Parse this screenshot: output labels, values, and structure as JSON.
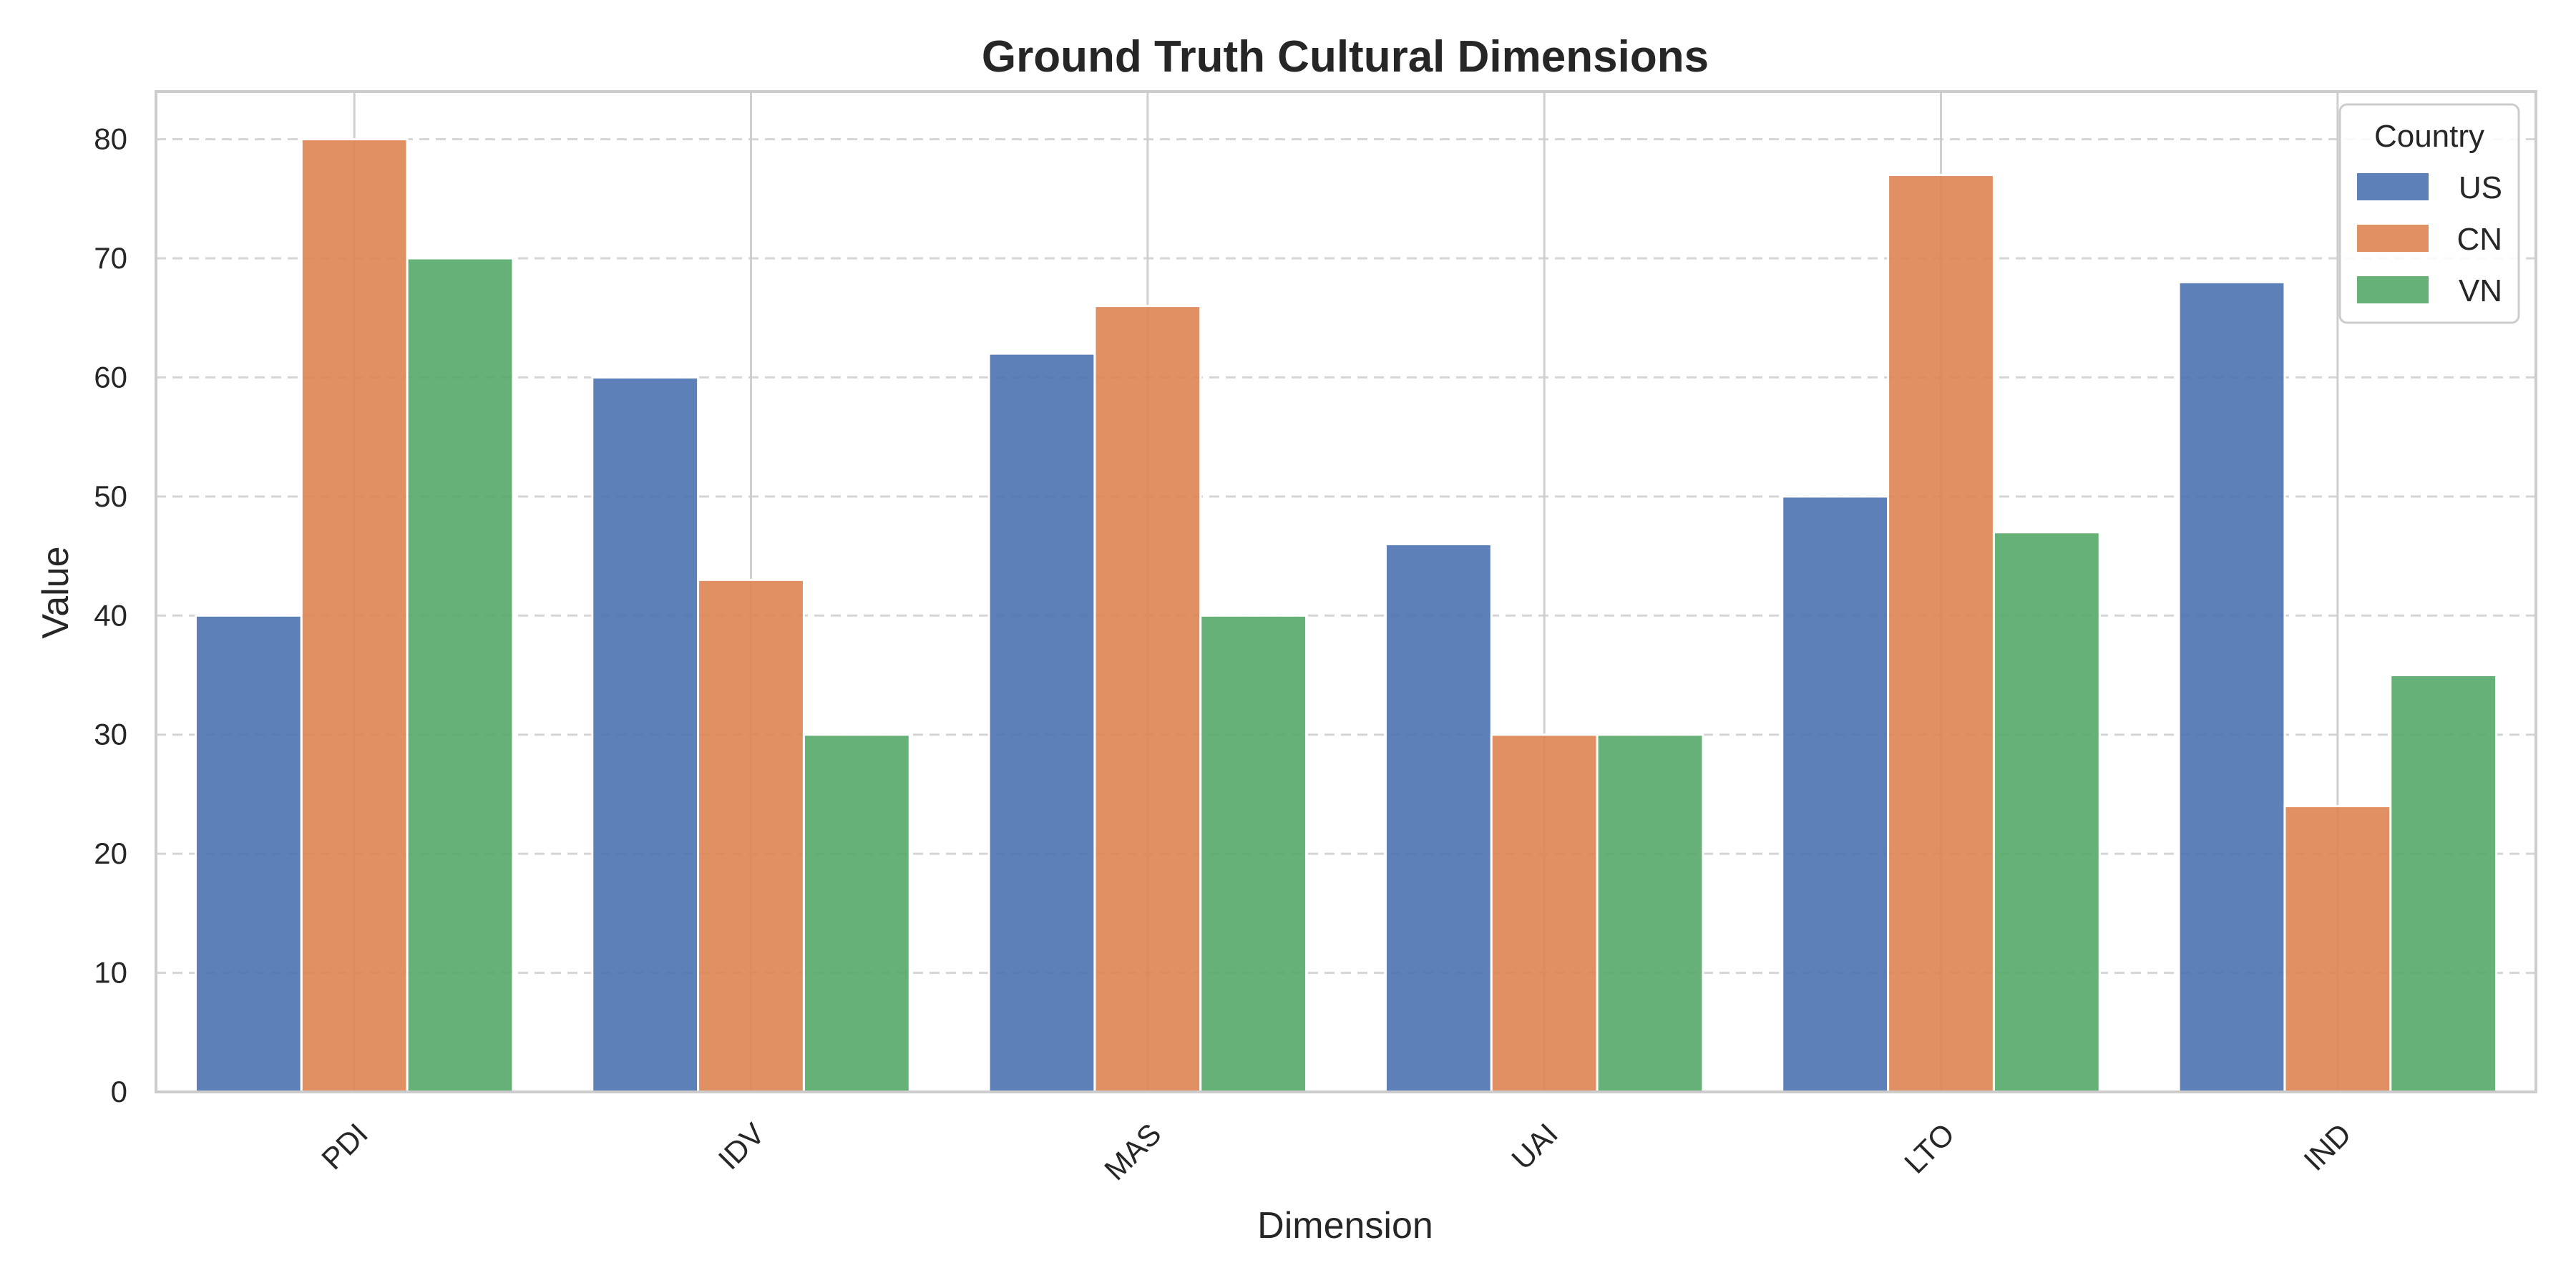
{
  "chart_data": {
    "type": "bar",
    "title": "Ground Truth Cultural Dimensions",
    "xlabel": "Dimension",
    "ylabel": "Value",
    "categories": [
      "PDI",
      "IDV",
      "MAS",
      "UAI",
      "LTO",
      "IND"
    ],
    "series": [
      {
        "name": "US",
        "color": "#4c72b0",
        "values": [
          40,
          60,
          62,
          46,
          50,
          68
        ]
      },
      {
        "name": "CN",
        "color": "#dd8452",
        "values": [
          80,
          43,
          66,
          30,
          77,
          24
        ]
      },
      {
        "name": "VN",
        "color": "#55a868",
        "values": [
          70,
          30,
          40,
          30,
          47,
          35
        ]
      }
    ],
    "ylim": [
      0,
      84
    ],
    "yticks": [
      0,
      10,
      20,
      30,
      40,
      50,
      60,
      70,
      80
    ],
    "grid": "y dashed",
    "legend": {
      "title": "Country",
      "placement": "top-right"
    }
  }
}
